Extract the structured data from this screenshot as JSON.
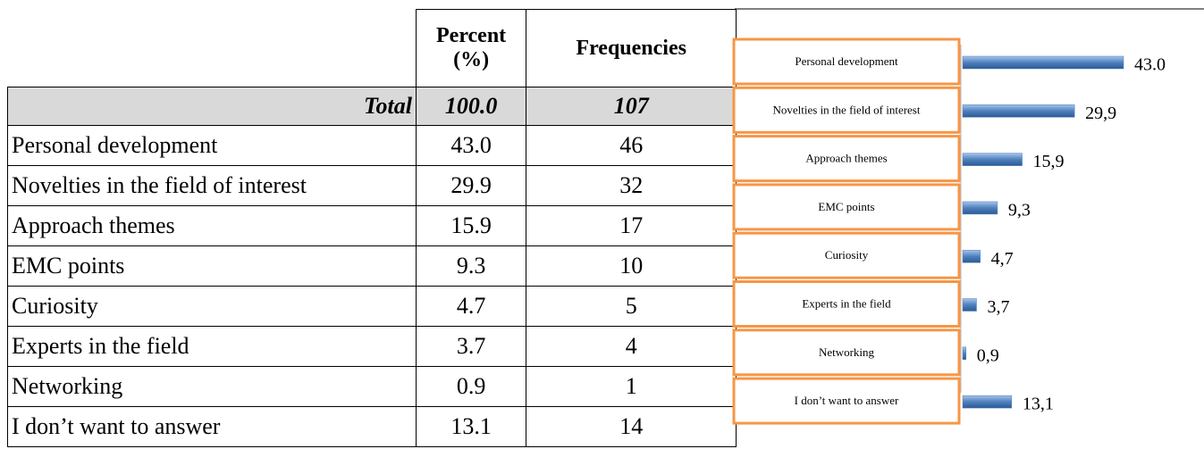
{
  "table": {
    "header": [
      "Percent (%)",
      "Frequencies"
    ],
    "total": [
      "Total",
      "100.0",
      "107"
    ],
    "rows": [
      [
        "Personal development",
        "43.0",
        "46"
      ],
      [
        "Novelties in the field of interest",
        "29.9",
        "32"
      ],
      [
        "Approach themes",
        "15.9",
        "17"
      ],
      [
        "EMC points",
        "9.3",
        "10"
      ],
      [
        "Curiosity",
        "4.7",
        "5"
      ],
      [
        "Experts in the field",
        "3.7",
        "4"
      ],
      [
        "Networking",
        "0.9",
        "1"
      ],
      [
        "I don’t want to answer",
        "13.1",
        "14"
      ]
    ]
  },
  "chart_data": {
    "type": "barh",
    "categories": [
      "Personal development",
      "Novelties in the field of interest",
      "Approach themes",
      "EMC points",
      "Curiosity",
      "Experts in the field",
      "Networking",
      "I don’t want to answer"
    ],
    "values": [
      43.0,
      29.9,
      15.9,
      9.3,
      4.7,
      3.7,
      0.9,
      13.1
    ],
    "value_labels": [
      "43.0",
      "29,9",
      "15,9",
      "9,3",
      "4,7",
      "3,7",
      "0,9",
      "13,1"
    ],
    "color": "#4f81bd",
    "box_color": "#f79646"
  }
}
